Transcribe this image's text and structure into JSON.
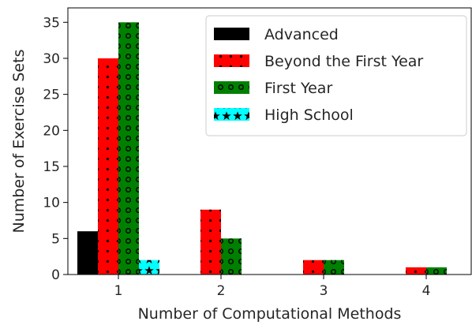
{
  "chart_data": {
    "type": "bar",
    "title": "",
    "xlabel": "Number of Computational Methods",
    "ylabel": "Number of Exercise Sets",
    "categories": [
      "1",
      "2",
      "3",
      "4"
    ],
    "ylim": [
      0,
      37
    ],
    "yticks": [
      0,
      5,
      10,
      15,
      20,
      25,
      30,
      35
    ],
    "grid": false,
    "legend_position": "top-right",
    "series": [
      {
        "name": "Advanced",
        "color": "#000000",
        "pattern": "none",
        "values": [
          6,
          0,
          0,
          0
        ]
      },
      {
        "name": "Beyond the First Year",
        "color": "#ff0000",
        "pattern": "dots",
        "values": [
          30,
          9,
          2,
          1
        ]
      },
      {
        "name": "First Year",
        "color": "#008000",
        "pattern": "rings",
        "values": [
          35,
          5,
          2,
          1
        ]
      },
      {
        "name": "High School",
        "color": "#00ffff",
        "pattern": "stars",
        "values": [
          2,
          0,
          0,
          0
        ]
      }
    ]
  }
}
